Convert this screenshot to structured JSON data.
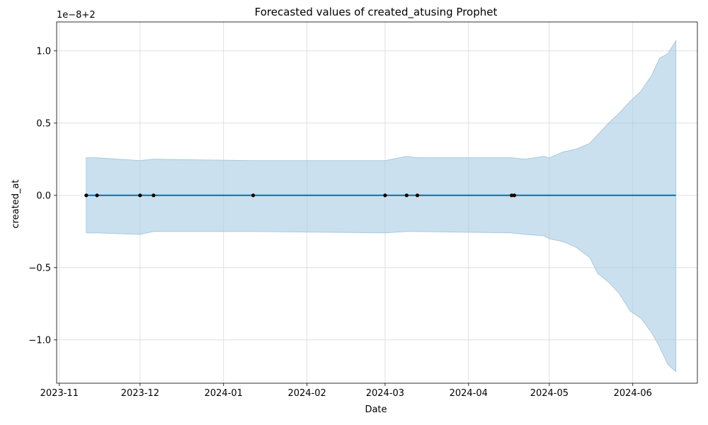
{
  "chart_data": {
    "type": "line",
    "title": "Forecasted values of created_atusing Prophet",
    "xlabel": "Date",
    "ylabel": "created_at",
    "offset_label": "1e−8+2",
    "x_range": [
      "2023-10-31",
      "2024-06-25"
    ],
    "ylim": [
      -1.3,
      1.2
    ],
    "grid": true,
    "x_ticks": [
      "2023-11",
      "2023-12",
      "2024-01",
      "2024-02",
      "2024-03",
      "2024-04",
      "2024-05",
      "2024-06"
    ],
    "y_ticks": [
      1.0,
      0.5,
      0.0,
      -0.5,
      -1.0
    ],
    "y_tick_labels": [
      "1.0",
      "0.5",
      "0.0",
      "−0.5",
      "−1.0"
    ],
    "colors": {
      "forecast": "#0072B2",
      "band": "#A6CBE3",
      "points": "#000000",
      "grid": "#d9d9d9"
    },
    "observed": {
      "x": [
        "2023-11-11",
        "2023-11-15",
        "2023-12-01",
        "2023-12-06",
        "2024-01-12",
        "2024-03-01",
        "2024-03-09",
        "2024-03-13",
        "2024-04-17",
        "2024-04-18"
      ],
      "y": [
        0,
        0,
        0,
        0,
        0,
        0,
        0,
        0,
        0,
        0
      ]
    },
    "forecast_line": {
      "x": [
        "2023-11-11",
        "2024-06-17"
      ],
      "y": [
        0,
        0
      ]
    },
    "interval": {
      "x": [
        "2023-11-11",
        "2023-11-15",
        "2023-12-01",
        "2023-12-06",
        "2024-01-12",
        "2024-03-01",
        "2024-03-09",
        "2024-03-13",
        "2024-04-17",
        "2024-04-22",
        "2024-04-29",
        "2024-05-01",
        "2024-05-06",
        "2024-05-11",
        "2024-05-16",
        "2024-05-19",
        "2024-05-23",
        "2024-05-27",
        "2024-05-31",
        "2024-06-04",
        "2024-06-08",
        "2024-06-11",
        "2024-06-14",
        "2024-06-17"
      ],
      "upper": [
        0.26,
        0.26,
        0.24,
        0.25,
        0.24,
        0.24,
        0.27,
        0.26,
        0.26,
        0.25,
        0.27,
        0.26,
        0.3,
        0.32,
        0.36,
        0.42,
        0.5,
        0.57,
        0.65,
        0.72,
        0.83,
        0.95,
        0.98,
        1.07
      ],
      "lower": [
        -0.26,
        -0.26,
        -0.27,
        -0.25,
        -0.25,
        -0.26,
        -0.25,
        -0.25,
        -0.26,
        -0.27,
        -0.28,
        -0.3,
        -0.32,
        -0.36,
        -0.43,
        -0.54,
        -0.6,
        -0.68,
        -0.8,
        -0.85,
        -0.95,
        -1.05,
        -1.17,
        -1.22
      ]
    }
  }
}
